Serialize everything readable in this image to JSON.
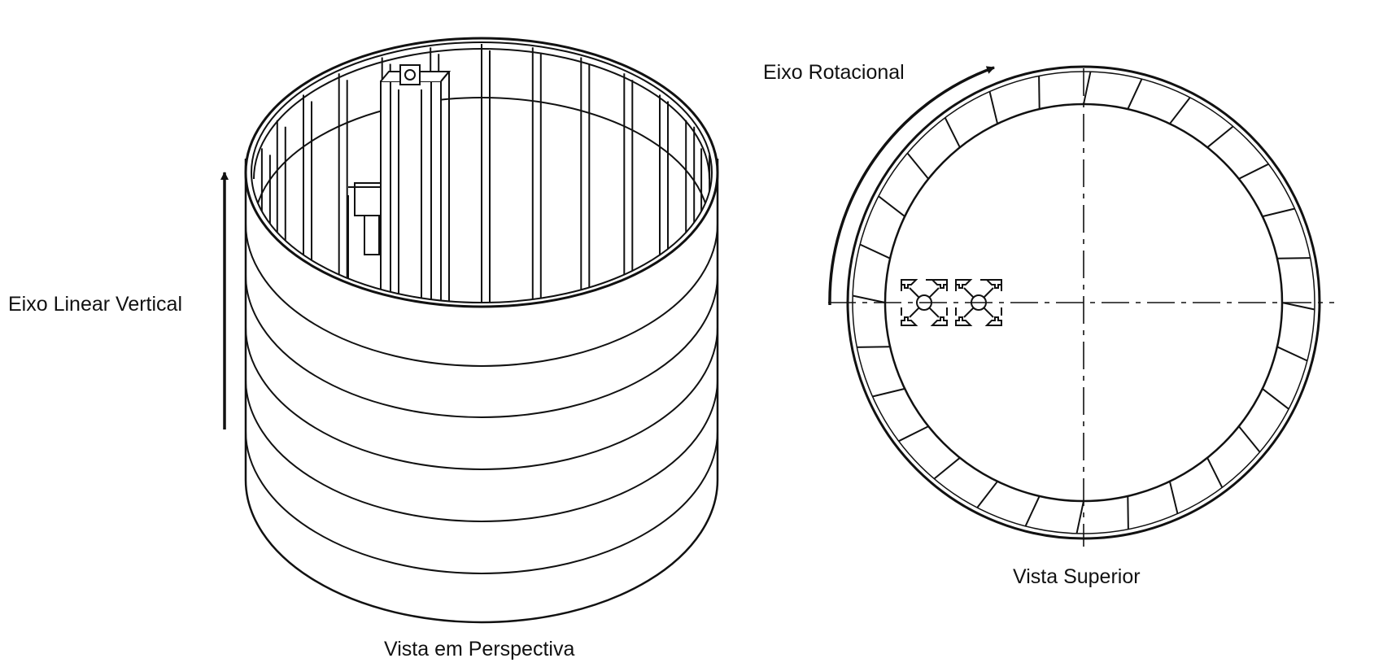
{
  "labels": {
    "vertical_axis": "Eixo Linear Vertical",
    "rotational_axis": "Eixo Rotacional",
    "perspective_view": "Vista em Perspectiva",
    "top_view": "Vista Superior"
  },
  "style": {
    "line_color": "#111111",
    "background": "#ffffff"
  }
}
